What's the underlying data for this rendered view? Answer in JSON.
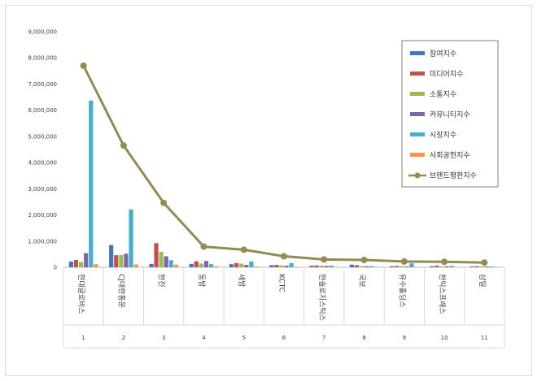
{
  "chart_data": {
    "type": "bar",
    "title": "",
    "xlabel": "",
    "ylabel": "",
    "ylim": [
      0,
      9000000
    ],
    "yticks": [
      "0",
      "1,000,000",
      "2,000,000",
      "3,000,000",
      "4,000,000",
      "5,000,000",
      "6,000,000",
      "7,000,000",
      "8,000,000",
      "9,000,000"
    ],
    "grid": false,
    "legend_position": "top-right",
    "categories": [
      "현대글로비스",
      "CJ대한통운",
      "한진",
      "동방",
      "세방",
      "KCTC",
      "한솔로지스틱스",
      "국보",
      "유수홀딩스",
      "한익스프레스",
      "삼일"
    ],
    "category_numbers": [
      "1",
      "2",
      "3",
      "4",
      "5",
      "6",
      "7",
      "8",
      "9",
      "10",
      "11"
    ],
    "series": [
      {
        "name": "참여지수",
        "type": "bar",
        "color": "#4472c4",
        "values": [
          220000,
          850000,
          130000,
          130000,
          120000,
          80000,
          60000,
          100000,
          40000,
          40000,
          30000
        ]
      },
      {
        "name": "미디어지수",
        "type": "bar",
        "color": "#c0504d",
        "values": [
          280000,
          460000,
          920000,
          230000,
          160000,
          90000,
          70000,
          80000,
          50000,
          60000,
          40000
        ]
      },
      {
        "name": "소통지수",
        "type": "bar",
        "color": "#9bbb59",
        "values": [
          200000,
          470000,
          590000,
          140000,
          140000,
          70000,
          60000,
          40000,
          40000,
          30000,
          30000
        ]
      },
      {
        "name": "커뮤니티지수",
        "type": "bar",
        "color": "#8064a2",
        "values": [
          540000,
          520000,
          420000,
          240000,
          90000,
          60000,
          50000,
          40000,
          30000,
          40000,
          30000
        ]
      },
      {
        "name": "시장지수",
        "type": "bar",
        "color": "#4bacc6",
        "values": [
          6370000,
          2210000,
          270000,
          120000,
          220000,
          160000,
          60000,
          40000,
          150000,
          50000,
          30000
        ]
      },
      {
        "name": "사회공헌지수",
        "type": "bar",
        "color": "#f79646",
        "values": [
          120000,
          110000,
          100000,
          40000,
          30000,
          20000,
          20000,
          20000,
          20000,
          20000,
          20000
        ]
      },
      {
        "name": "브랜드평판지수",
        "type": "line",
        "color": "#948a54",
        "values": [
          7700000,
          4650000,
          2460000,
          790000,
          670000,
          420000,
          300000,
          280000,
          220000,
          210000,
          180000
        ]
      }
    ]
  }
}
